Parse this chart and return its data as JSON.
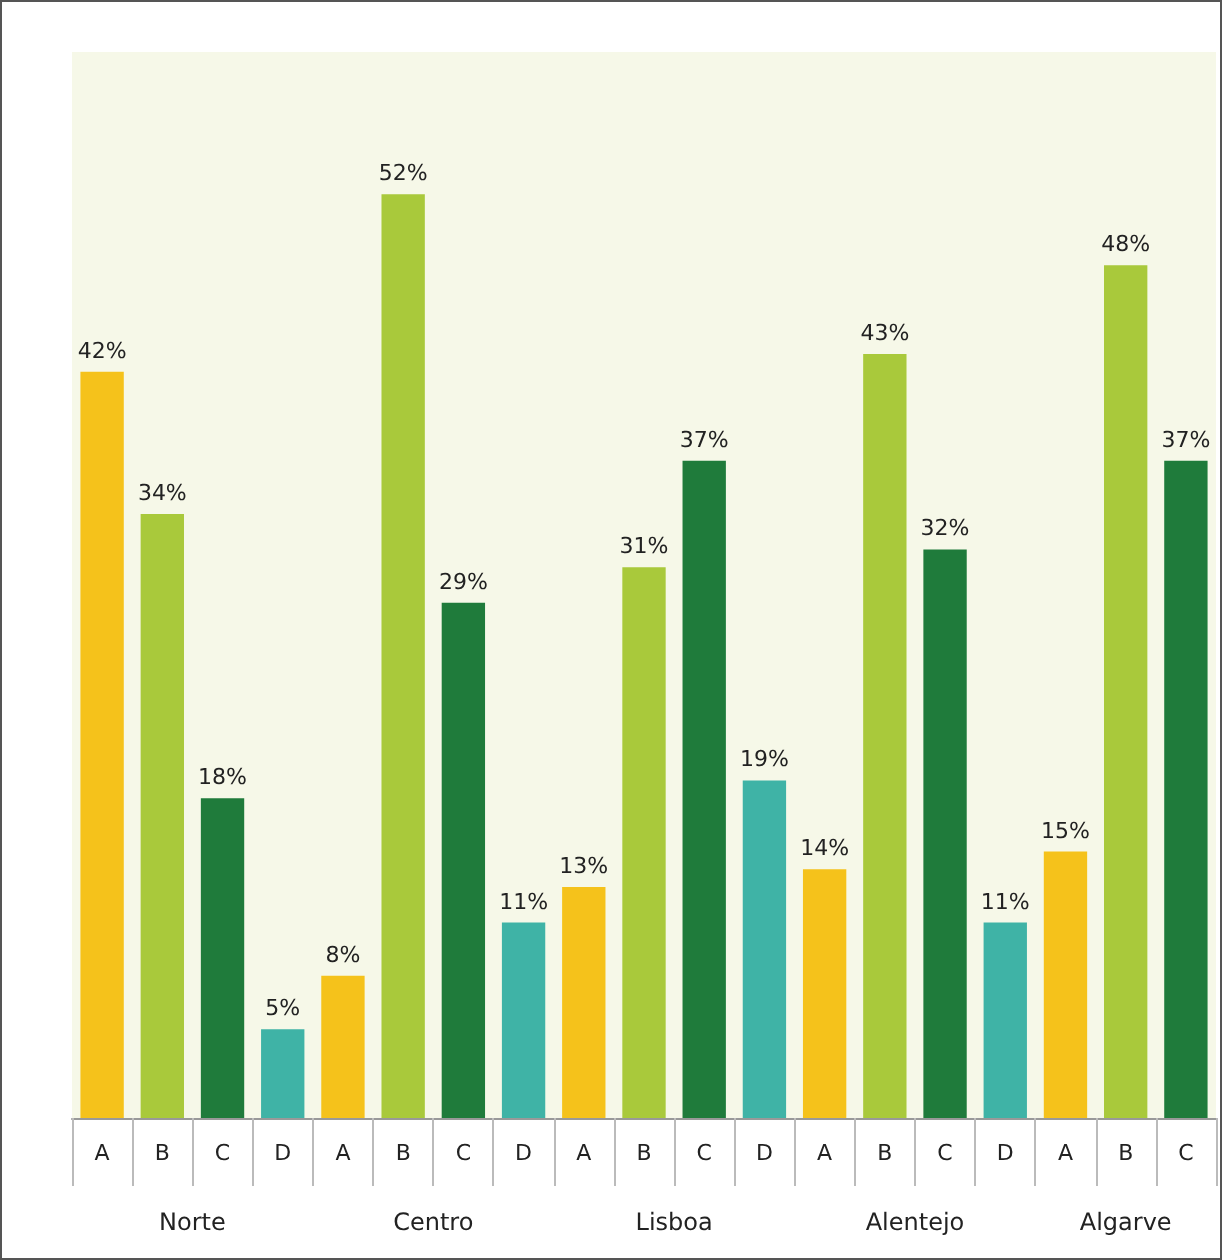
{
  "chart_data": {
    "type": "bar",
    "categories": [
      "A",
      "B",
      "C",
      "D",
      "A",
      "B",
      "C",
      "D",
      "A",
      "B",
      "C",
      "D",
      "A",
      "B",
      "C",
      "D",
      "A",
      "B",
      "C"
    ],
    "values": [
      42,
      34,
      18,
      5,
      8,
      52,
      29,
      11,
      13,
      31,
      37,
      19,
      14,
      43,
      32,
      11,
      15,
      48,
      37
    ],
    "value_labels": [
      "42%",
      "34%",
      "18%",
      "5%",
      "8%",
      "52%",
      "29%",
      "11%",
      "13%",
      "31%",
      "37%",
      "19%",
      "14%",
      "43%",
      "32%",
      "11%",
      "15%",
      "48%",
      "37%"
    ],
    "colors": [
      "#f5c21b",
      "#a9c93b",
      "#1f7b3b",
      "#3fb3a6",
      "#f5c21b",
      "#a9c93b",
      "#1f7b3b",
      "#3fb3a6",
      "#f5c21b",
      "#a9c93b",
      "#1f7b3b",
      "#3fb3a6",
      "#f5c21b",
      "#a9c93b",
      "#1f7b3b",
      "#3fb3a6",
      "#f5c21b",
      "#a9c93b",
      "#1f7b3b"
    ],
    "annotations": [
      "Norte",
      "Centro",
      "Lisboa",
      "Alentejo",
      "Algarve"
    ]
  }
}
